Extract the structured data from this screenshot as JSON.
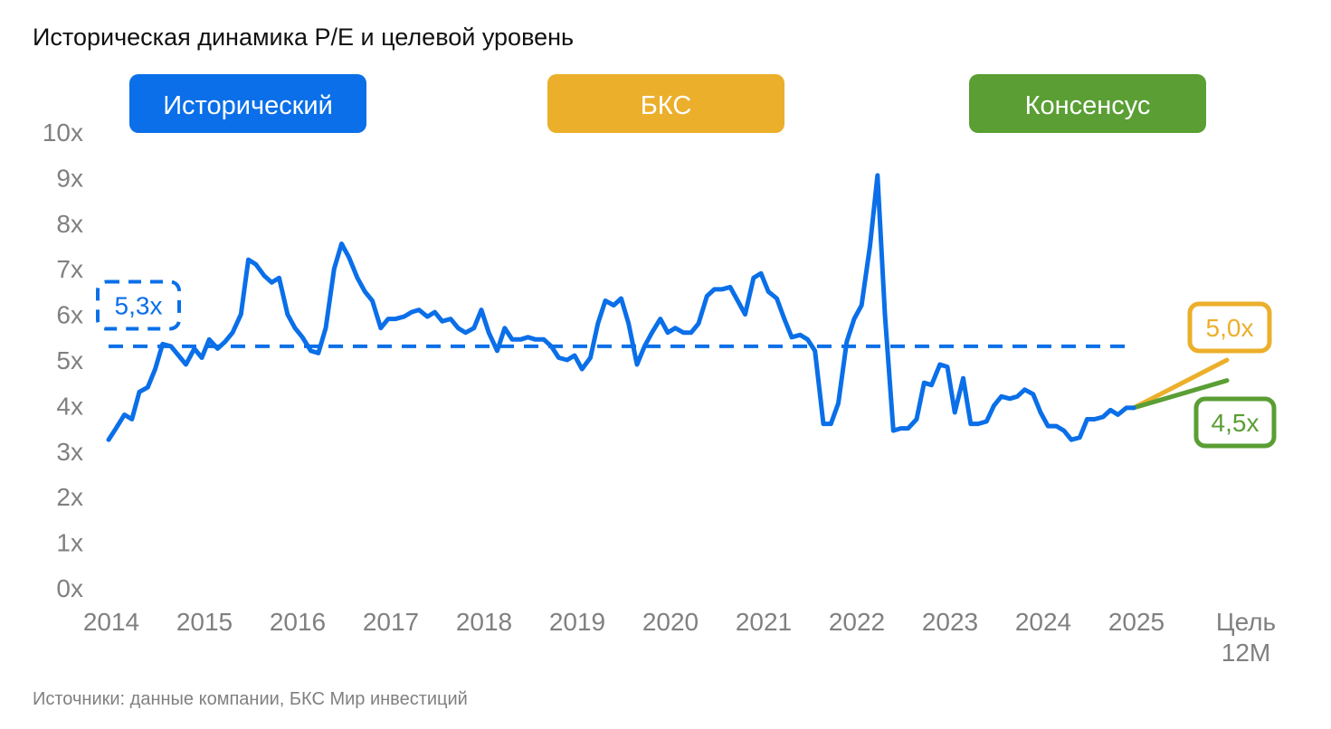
{
  "title": "Историческая динамика P/E и целевой уровень",
  "source": "Источники: данные компании, БКС Мир инвестиций",
  "colors": {
    "historical": "#0A6FE8",
    "bks": "#EBAF2B",
    "consensus": "#5A9E34",
    "axis_text": "#808080"
  },
  "legend": [
    {
      "label": "Исторический",
      "color": "#0A6FE8"
    },
    {
      "label": "БКС",
      "color": "#EBAF2B"
    },
    {
      "label": "Консенсус",
      "color": "#5A9E34"
    }
  ],
  "chart_data": {
    "type": "line",
    "title": "Историческая динамика P/E и целевой уровень",
    "ylim": [
      0,
      10
    ],
    "y_ticks": [
      "0x",
      "1x",
      "2x",
      "3x",
      "4x",
      "5x",
      "6x",
      "7x",
      "8x",
      "9x",
      "10x"
    ],
    "x_ticks": [
      "2014",
      "2015",
      "2016",
      "2017",
      "2018",
      "2019",
      "2020",
      "2021",
      "2022",
      "2023",
      "2024",
      "2025",
      "Цель 12M"
    ],
    "grid": false,
    "series": [
      {
        "name": "Исторический",
        "color": "#0A6FE8",
        "points": [
          [
            2014.0,
            3.25
          ],
          [
            2014.08,
            3.5
          ],
          [
            2014.17,
            3.8
          ],
          [
            2014.25,
            3.7
          ],
          [
            2014.33,
            4.3
          ],
          [
            2014.42,
            4.4
          ],
          [
            2014.5,
            4.8
          ],
          [
            2014.58,
            5.35
          ],
          [
            2014.67,
            5.3
          ],
          [
            2014.75,
            5.1
          ],
          [
            2014.83,
            4.9
          ],
          [
            2014.92,
            5.25
          ],
          [
            2015.0,
            5.05
          ],
          [
            2015.08,
            5.45
          ],
          [
            2015.17,
            5.25
          ],
          [
            2015.25,
            5.4
          ],
          [
            2015.33,
            5.6
          ],
          [
            2015.42,
            6.0
          ],
          [
            2015.5,
            7.2
          ],
          [
            2015.58,
            7.1
          ],
          [
            2015.67,
            6.85
          ],
          [
            2015.75,
            6.7
          ],
          [
            2015.83,
            6.8
          ],
          [
            2015.92,
            6.0
          ],
          [
            2016.0,
            5.7
          ],
          [
            2016.08,
            5.5
          ],
          [
            2016.17,
            5.2
          ],
          [
            2016.25,
            5.15
          ],
          [
            2016.33,
            5.7
          ],
          [
            2016.42,
            7.0
          ],
          [
            2016.5,
            7.55
          ],
          [
            2016.58,
            7.25
          ],
          [
            2016.67,
            6.8
          ],
          [
            2016.75,
            6.5
          ],
          [
            2016.83,
            6.3
          ],
          [
            2016.92,
            5.7
          ],
          [
            2017.0,
            5.9
          ],
          [
            2017.08,
            5.9
          ],
          [
            2017.17,
            5.95
          ],
          [
            2017.25,
            6.05
          ],
          [
            2017.33,
            6.1
          ],
          [
            2017.42,
            5.95
          ],
          [
            2017.5,
            6.05
          ],
          [
            2017.58,
            5.85
          ],
          [
            2017.67,
            5.9
          ],
          [
            2017.75,
            5.7
          ],
          [
            2017.83,
            5.6
          ],
          [
            2017.92,
            5.7
          ],
          [
            2018.0,
            6.1
          ],
          [
            2018.08,
            5.6
          ],
          [
            2018.17,
            5.2
          ],
          [
            2018.25,
            5.7
          ],
          [
            2018.33,
            5.45
          ],
          [
            2018.42,
            5.45
          ],
          [
            2018.5,
            5.5
          ],
          [
            2018.58,
            5.45
          ],
          [
            2018.67,
            5.45
          ],
          [
            2018.75,
            5.3
          ],
          [
            2018.83,
            5.05
          ],
          [
            2018.92,
            5.0
          ],
          [
            2019.0,
            5.1
          ],
          [
            2019.08,
            4.8
          ],
          [
            2019.17,
            5.05
          ],
          [
            2019.25,
            5.8
          ],
          [
            2019.33,
            6.3
          ],
          [
            2019.42,
            6.2
          ],
          [
            2019.5,
            6.35
          ],
          [
            2019.58,
            5.8
          ],
          [
            2019.67,
            4.9
          ],
          [
            2019.75,
            5.3
          ],
          [
            2019.83,
            5.6
          ],
          [
            2019.92,
            5.9
          ],
          [
            2020.0,
            5.6
          ],
          [
            2020.08,
            5.7
          ],
          [
            2020.17,
            5.6
          ],
          [
            2020.25,
            5.6
          ],
          [
            2020.33,
            5.8
          ],
          [
            2020.42,
            6.4
          ],
          [
            2020.5,
            6.55
          ],
          [
            2020.58,
            6.55
          ],
          [
            2020.67,
            6.6
          ],
          [
            2020.75,
            6.3
          ],
          [
            2020.83,
            6.0
          ],
          [
            2020.92,
            6.8
          ],
          [
            2021.0,
            6.9
          ],
          [
            2021.08,
            6.5
          ],
          [
            2021.17,
            6.35
          ],
          [
            2021.25,
            5.9
          ],
          [
            2021.33,
            5.5
          ],
          [
            2021.42,
            5.55
          ],
          [
            2021.5,
            5.45
          ],
          [
            2021.58,
            5.2
          ],
          [
            2021.67,
            3.6
          ],
          [
            2021.75,
            3.6
          ],
          [
            2021.83,
            4.05
          ],
          [
            2021.92,
            5.4
          ],
          [
            2022.0,
            5.9
          ],
          [
            2022.08,
            6.2
          ],
          [
            2022.17,
            7.5
          ],
          [
            2022.25,
            9.05
          ],
          [
            2022.33,
            6.0
          ],
          [
            2022.42,
            3.45
          ],
          [
            2022.5,
            3.5
          ],
          [
            2022.58,
            3.5
          ],
          [
            2022.67,
            3.7
          ],
          [
            2022.75,
            4.5
          ],
          [
            2022.83,
            4.45
          ],
          [
            2022.92,
            4.9
          ],
          [
            2023.0,
            4.85
          ],
          [
            2023.08,
            3.85
          ],
          [
            2023.17,
            4.6
          ],
          [
            2023.25,
            3.6
          ],
          [
            2023.33,
            3.6
          ],
          [
            2023.42,
            3.65
          ],
          [
            2023.5,
            4.0
          ],
          [
            2023.58,
            4.2
          ],
          [
            2023.67,
            4.15
          ],
          [
            2023.75,
            4.2
          ],
          [
            2023.83,
            4.35
          ],
          [
            2023.92,
            4.25
          ],
          [
            2024.0,
            3.85
          ],
          [
            2024.08,
            3.55
          ],
          [
            2024.17,
            3.55
          ],
          [
            2024.25,
            3.45
          ],
          [
            2024.33,
            3.25
          ],
          [
            2024.42,
            3.3
          ],
          [
            2024.5,
            3.7
          ],
          [
            2024.58,
            3.7
          ],
          [
            2024.67,
            3.75
          ],
          [
            2024.75,
            3.9
          ],
          [
            2024.83,
            3.8
          ],
          [
            2024.92,
            3.95
          ],
          [
            2025.0,
            3.95
          ]
        ]
      },
      {
        "name": "Исторический (среднее)",
        "color": "#0A6FE8",
        "dashed": true,
        "value": 5.3,
        "x_range": [
          2014.0,
          2025.0
        ],
        "label": "5,3x"
      },
      {
        "name": "БКС",
        "color": "#EBAF2B",
        "points": [
          [
            2025.0,
            3.95
          ],
          [
            2026.0,
            5.0
          ]
        ],
        "label": "5,0x"
      },
      {
        "name": "Консенсус",
        "color": "#5A9E34",
        "points": [
          [
            2025.0,
            3.95
          ],
          [
            2026.0,
            4.55
          ]
        ],
        "label": "4,5x"
      }
    ]
  }
}
